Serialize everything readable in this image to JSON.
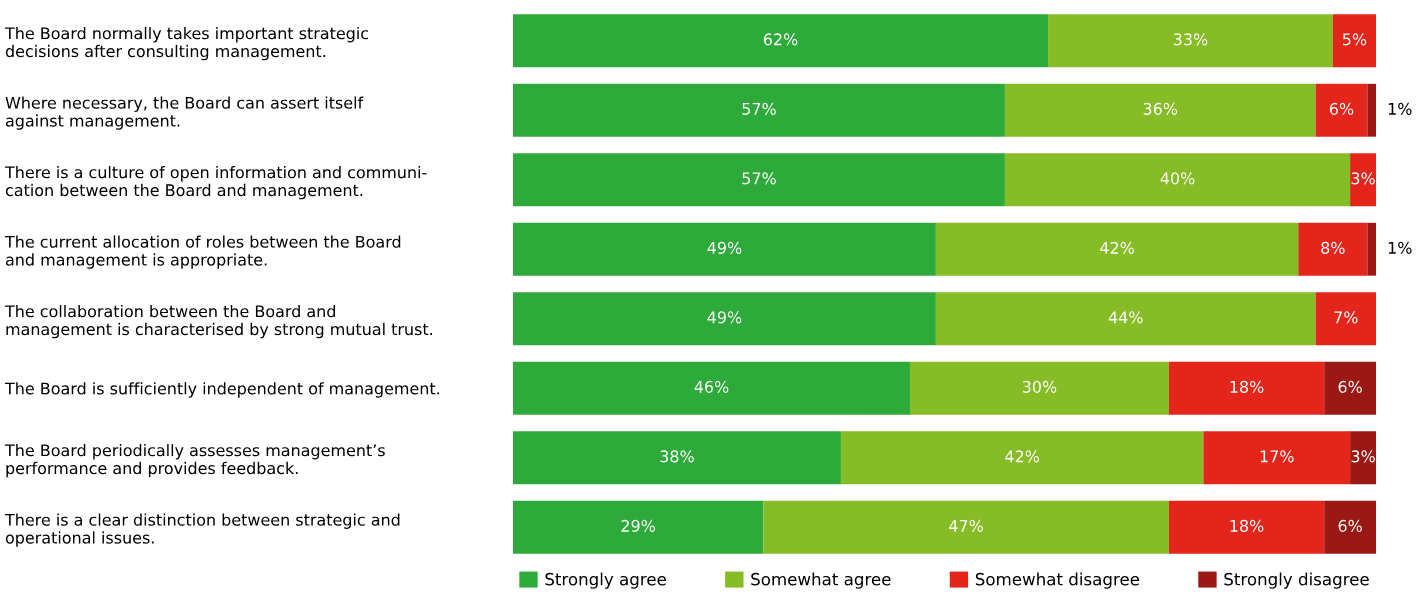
{
  "chart_data": {
    "type": "bar",
    "orientation": "horizontal",
    "stacked": true,
    "legend": "bottom",
    "grid": false,
    "tick_labels": "y",
    "categories": [
      "The Board normally takes important strategic\ndecisions after consulting management.",
      "Where necessary, the Board can assert itself\nagainst management.",
      "There is a culture of open information and communi-\ncation between the Board and management.",
      "The current allocation of roles between the Board\nand management is appropriate.",
      "The collaboration between the Board and\nmanagement is characterised by strong mutual trust.",
      "The Board is sufficiently independent of management.",
      "The Board periodically assesses management’s\nperformance and provides feedback.",
      "There is a clear distinction between strategic and\noperational issues."
    ],
    "series": [
      {
        "name": "Strongly agree",
        "color": "#2eaa3a",
        "values": [
          62,
          57,
          57,
          49,
          49,
          46,
          38,
          29
        ],
        "value_labels": [
          "62%",
          "57%",
          "57%",
          "49%",
          "49%",
          "46%",
          "38%",
          "29%"
        ]
      },
      {
        "name": "Somewhat agree",
        "color": "#86bc25",
        "values": [
          33,
          36,
          40,
          42,
          44,
          30,
          42,
          47
        ],
        "value_labels": [
          "33%",
          "36%",
          "40%",
          "42%",
          "44%",
          "30%",
          "42%",
          "47%"
        ]
      },
      {
        "name": "Somewhat disagree",
        "color": "#e3251b",
        "values": [
          5,
          6,
          3,
          8,
          7,
          18,
          17,
          18
        ],
        "value_labels": [
          "5%",
          "6%",
          "3%",
          "8%",
          "7%",
          "18%",
          "17%",
          "18%"
        ]
      },
      {
        "name": "Strongly disagree",
        "color": "#9b1915",
        "values": [
          null,
          1,
          null,
          1,
          null,
          6,
          3,
          6
        ],
        "value_labels": [
          null,
          "1%",
          null,
          "1%",
          null,
          "6%",
          "3%",
          "6%"
        ]
      }
    ]
  }
}
